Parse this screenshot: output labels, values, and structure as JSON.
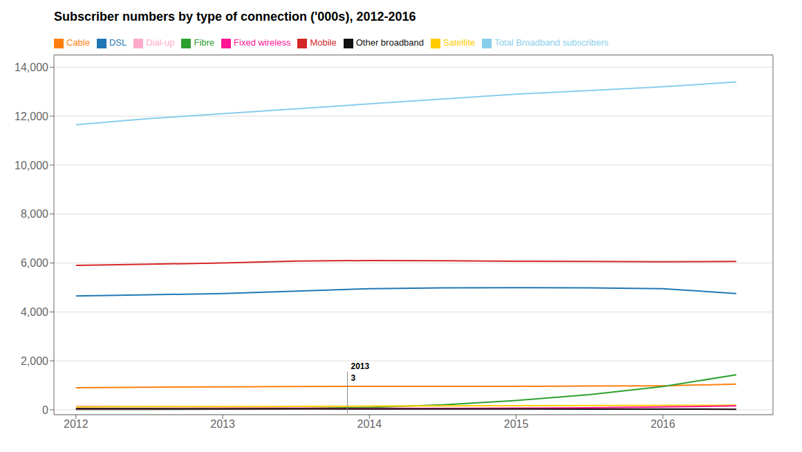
{
  "chart_data": {
    "type": "line",
    "title": "Subscriber numbers by type of connection ('000s), 2012-2016",
    "x": [
      2012.0,
      2012.5,
      2013.0,
      2013.5,
      2014.0,
      2014.5,
      2015.0,
      2015.5,
      2016.0,
      2016.5
    ],
    "series": [
      {
        "name": "Dial-up",
        "color": "#FFAACC",
        "values": [
          150,
          130,
          110,
          90,
          70,
          60,
          50,
          45,
          40,
          35
        ]
      },
      {
        "name": "DSL",
        "color": "#1F77B4",
        "values": [
          4650,
          4700,
          4750,
          4850,
          4950,
          4980,
          4990,
          4980,
          4950,
          4750
        ]
      },
      {
        "name": "Cable",
        "color": "#FF7F0E",
        "values": [
          900,
          920,
          940,
          950,
          960,
          960,
          960,
          970,
          980,
          1050
        ]
      },
      {
        "name": "Fibre",
        "color": "#2CA02C",
        "values": [
          10,
          15,
          25,
          50,
          100,
          200,
          380,
          620,
          950,
          1430
        ]
      },
      {
        "name": "Satellite",
        "color": "#FFCC00",
        "values": [
          120,
          130,
          135,
          140,
          150,
          160,
          170,
          175,
          180,
          185
        ]
      },
      {
        "name": "Fixed wireless",
        "color": "#FF1493",
        "values": [
          30,
          35,
          40,
          45,
          50,
          55,
          65,
          80,
          120,
          160
        ]
      },
      {
        "name": "Mobile",
        "color": "#D62728",
        "values": [
          5900,
          5950,
          6000,
          6080,
          6100,
          6090,
          6070,
          6060,
          6050,
          6060
        ]
      },
      {
        "name": "Other broadband",
        "color": "#111111",
        "values": [
          50,
          45,
          40,
          38,
          35,
          33,
          30,
          28,
          25,
          22
        ]
      },
      {
        "name": "Total Broadband subscribers",
        "color": "#87CEEB",
        "values": [
          11650,
          11900,
          12100,
          12300,
          12500,
          12700,
          12900,
          13050,
          13200,
          13400
        ]
      }
    ],
    "xlim": [
      2011.85,
      2016.75
    ],
    "ylim": [
      -200,
      14500
    ],
    "xticks": [
      2012,
      2013,
      2014,
      2015,
      2016
    ],
    "yticks": [
      0,
      {
        "value": 2000,
        "label": "2,000"
      },
      {
        "value": 4000,
        "label": "4,000"
      },
      {
        "value": 6000,
        "label": "6,000"
      },
      {
        "value": 8000,
        "label": "8,000"
      },
      {
        "value": 10000,
        "label": "10,000"
      },
      {
        "value": 12000,
        "label": "12,000"
      },
      {
        "value": 14000,
        "label": "14,000"
      }
    ],
    "grid": true,
    "legend": "top",
    "annotations": [
      {
        "x": 2013.85,
        "y": [
          -150,
          1550
        ]
      },
      {
        "text": "2013",
        "x": 2013.85,
        "y": 1620
      },
      {
        "text": "3",
        "x": 2013.85,
        "y": 1480
      }
    ]
  }
}
